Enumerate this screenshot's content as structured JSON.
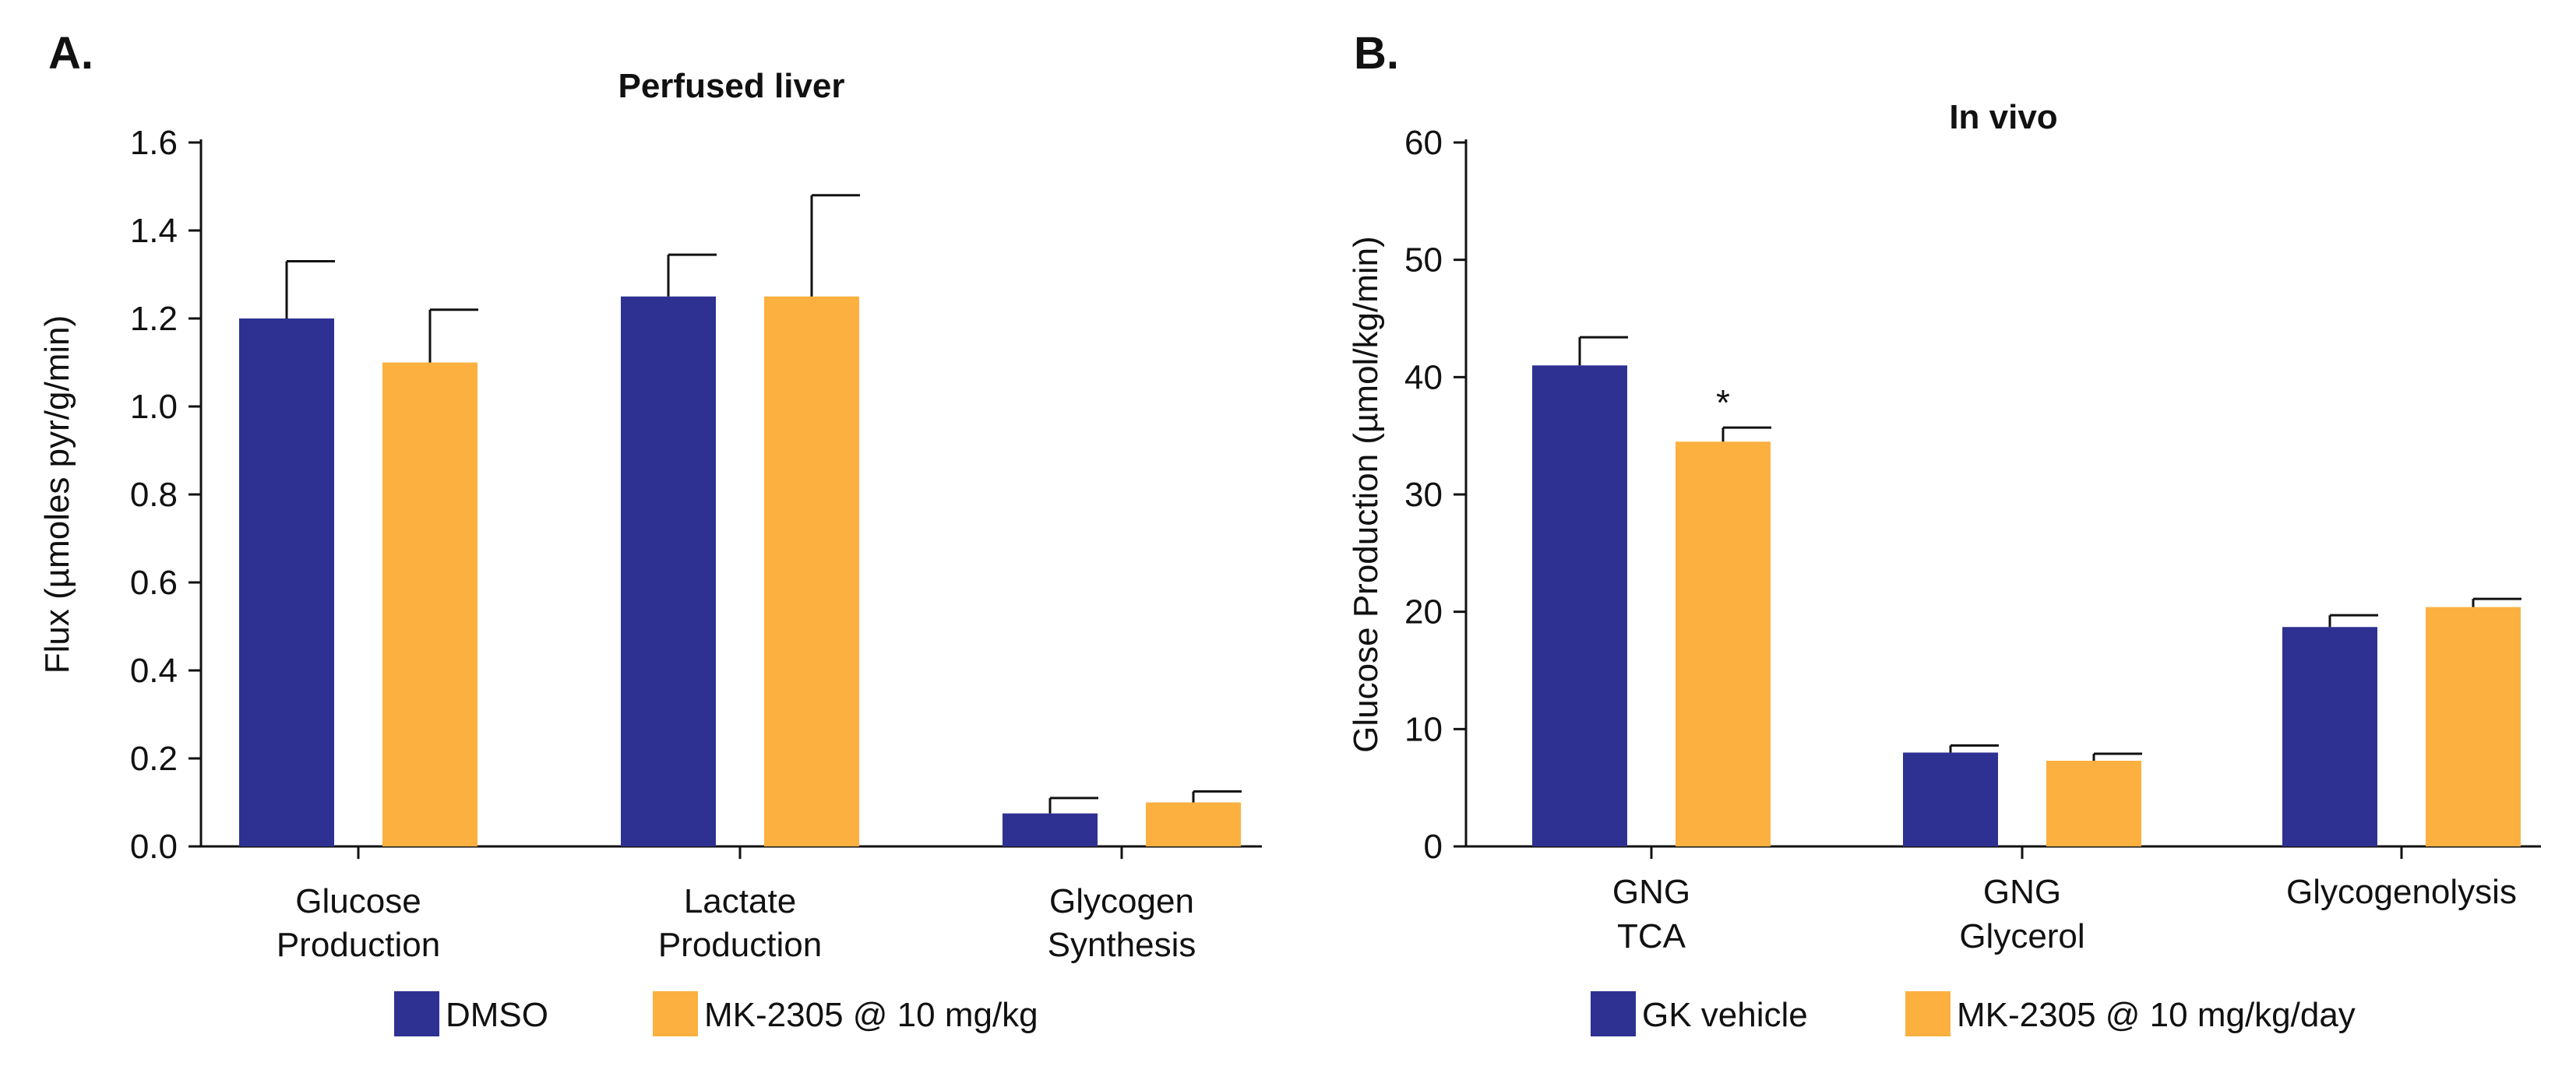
{
  "chart_data": [
    {
      "panel": "A.",
      "type": "bar",
      "title": "Perfused liver",
      "ylabel": "Flux (µmoles pyr/g/min)",
      "xlabel": "",
      "ylim": [
        0,
        1.6
      ],
      "yticks": [
        0.0,
        0.2,
        0.4,
        0.6,
        0.8,
        1.0,
        1.2,
        1.4,
        1.6
      ],
      "ytick_labels": [
        "0.0",
        "0.2",
        "0.4",
        "0.6",
        "0.8",
        "1.0",
        "1.2",
        "1.4",
        "1.6"
      ],
      "categories": [
        [
          "Glucose",
          "Production"
        ],
        [
          "Lactate",
          "Production"
        ],
        [
          "Glycogen",
          "Synthesis"
        ]
      ],
      "series": [
        {
          "name": "DMSO",
          "color": "#2e3192",
          "values": [
            1.2,
            1.25,
            0.075
          ],
          "errors": [
            0.13,
            0.095,
            0.035
          ]
        },
        {
          "name": "MK-2305 @ 10 mg/kg",
          "color": "#fbb040",
          "values": [
            1.1,
            1.25,
            0.1
          ],
          "errors": [
            0.12,
            0.23,
            0.025
          ]
        }
      ],
      "annotations": [],
      "legend": "bottom"
    },
    {
      "panel": "B.",
      "type": "bar",
      "title": "In vivo",
      "ylabel": "Glucose Production (µmol/kg/min)",
      "xlabel": "",
      "ylim": [
        0,
        60
      ],
      "yticks": [
        0,
        10,
        20,
        30,
        40,
        50,
        60
      ],
      "ytick_labels": [
        "0",
        "10",
        "20",
        "30",
        "40",
        "50",
        "60"
      ],
      "categories": [
        [
          "GNG",
          "TCA"
        ],
        [
          "GNG",
          "Glycerol"
        ],
        [
          "Glycogenolysis"
        ]
      ],
      "series": [
        {
          "name": "GK vehicle",
          "color": "#2e3192",
          "values": [
            41,
            8,
            18.7
          ],
          "errors": [
            2.4,
            0.6,
            1.0
          ]
        },
        {
          "name": "MK-2305 @ 10 mg/kg/day",
          "color": "#fbb040",
          "values": [
            34.5,
            7.3,
            20.4
          ],
          "errors": [
            1.2,
            0.6,
            0.7
          ]
        }
      ],
      "annotations": [
        {
          "text": "*",
          "category": 0,
          "series": 1
        }
      ],
      "legend": "bottom"
    }
  ]
}
